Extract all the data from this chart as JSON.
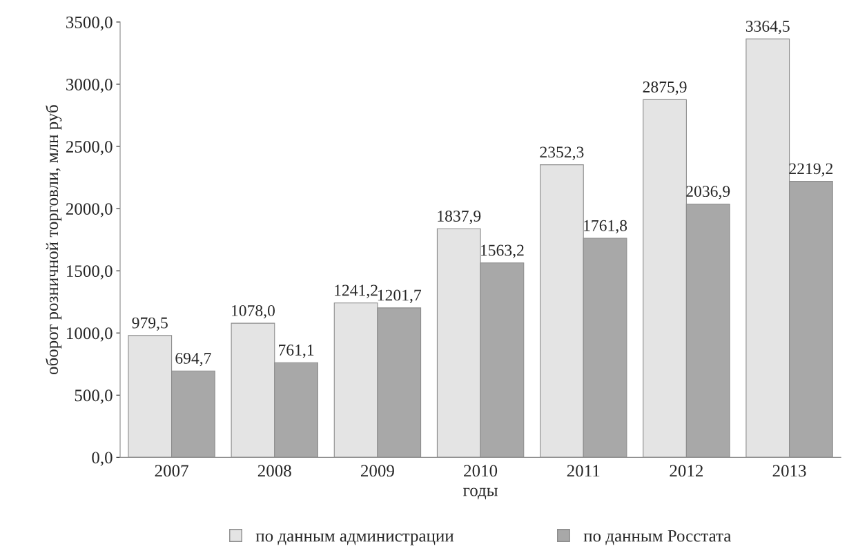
{
  "chart_data": {
    "type": "bar",
    "xlabel": "годы",
    "ylabel": "оборот розничной торговли, млн руб",
    "categories": [
      "2007",
      "2008",
      "2009",
      "2010",
      "2011",
      "2012",
      "2013"
    ],
    "series": [
      {
        "name": "по данным администрации",
        "color": "#e4e4e4",
        "values": [
          979.5,
          1078.0,
          1241.2,
          1837.9,
          2352.3,
          2875.9,
          3364.5
        ],
        "value_labels": [
          "979,5",
          "1078,0",
          "1241,2",
          "1837,9",
          "2352,3",
          "2875,9",
          "3364,5"
        ]
      },
      {
        "name": "по данным Росстата",
        "color": "#a8a8a8",
        "values": [
          694.7,
          761.1,
          1201.7,
          1563.2,
          1761.8,
          2036.9,
          2219.2
        ],
        "value_labels": [
          "694,7",
          "761,1",
          "1201,7",
          "1563,2",
          "1761,8",
          "2036,9",
          "2219,2"
        ]
      }
    ],
    "ylim": [
      0,
      3500
    ],
    "yticks": [
      {
        "value": 0,
        "label": "0,0"
      },
      {
        "value": 500,
        "label": "500,0"
      },
      {
        "value": 1000,
        "label": "1000,0"
      },
      {
        "value": 1500,
        "label": "1500,0"
      },
      {
        "value": 2000,
        "label": "2000,0"
      },
      {
        "value": 2500,
        "label": "2500,0"
      },
      {
        "value": 3000,
        "label": "3000,0"
      },
      {
        "value": 3500,
        "label": "3500,0"
      }
    ],
    "grid": false,
    "legend": "bottom"
  }
}
